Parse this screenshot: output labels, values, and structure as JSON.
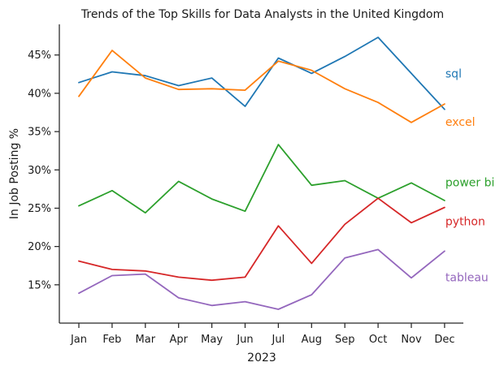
{
  "chart_data": {
    "type": "line",
    "title": "Trends of the Top Skills for Data Analysts in the United Kingdom",
    "xlabel": "2023",
    "ylabel": "In Job Posting %",
    "categories": [
      "Jan",
      "Feb",
      "Mar",
      "Apr",
      "May",
      "Jun",
      "Jul",
      "Aug",
      "Sep",
      "Oct",
      "Nov",
      "Dec"
    ],
    "ylim": [
      10,
      49
    ],
    "yticks": [
      15,
      20,
      25,
      30,
      35,
      40,
      45
    ],
    "ytick_labels": [
      "15%",
      "20%",
      "25%",
      "30%",
      "35%",
      "40%",
      "45%"
    ],
    "grid": false,
    "legend": "inline labels at right end",
    "series": [
      {
        "name": "sql",
        "color": "#1f77b4",
        "values": [
          41.4,
          42.8,
          42.3,
          41.0,
          42.0,
          38.3,
          44.6,
          42.6,
          44.8,
          47.3,
          42.6,
          37.9
        ]
      },
      {
        "name": "excel",
        "color": "#ff7f0e",
        "values": [
          39.6,
          45.6,
          42.0,
          40.5,
          40.6,
          40.4,
          44.2,
          43.0,
          40.6,
          38.8,
          36.2,
          38.6
        ]
      },
      {
        "name": "power bi",
        "color": "#2ca02c",
        "values": [
          25.3,
          27.3,
          24.4,
          28.5,
          26.2,
          24.6,
          33.3,
          28.0,
          28.6,
          26.3,
          28.3,
          26.0
        ]
      },
      {
        "name": "python",
        "color": "#d62728",
        "values": [
          18.1,
          17.0,
          16.8,
          16.0,
          15.6,
          16.0,
          22.7,
          17.8,
          22.9,
          26.3,
          23.1,
          25.1
        ]
      },
      {
        "name": "tableau",
        "color": "#9467bd",
        "values": [
          13.9,
          16.2,
          16.4,
          13.3,
          12.3,
          12.8,
          11.8,
          13.7,
          18.5,
          19.6,
          15.9,
          19.4
        ]
      }
    ],
    "label_values": {
      "sql": 42.6,
      "excel": 36.3,
      "power bi": 28.4,
      "python": 23.3,
      "tableau": 16.0
    }
  }
}
